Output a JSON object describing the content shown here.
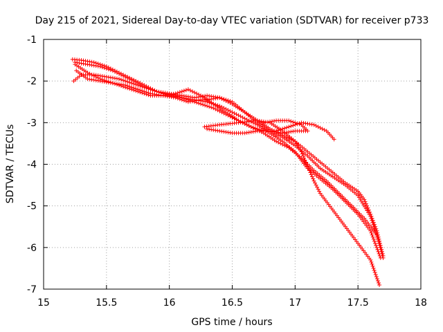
{
  "chart_data": {
    "type": "scatter",
    "title": "Day 215 of 2021, Sidereal Day-to-day VTEC variation (SDTVAR) for receiver p733",
    "xlabel": "GPS time / hours",
    "ylabel": "SDTVAR / TECUs",
    "xlim": [
      15,
      18
    ],
    "ylim": [
      -7,
      -1
    ],
    "xticks": [
      15,
      15.5,
      16,
      16.5,
      17,
      17.5,
      18
    ],
    "xtick_labels": [
      "15",
      "15.5",
      "16",
      "16.5",
      "17",
      "17.5",
      "18"
    ],
    "yticks": [
      -1,
      -2,
      -3,
      -4,
      -5,
      -6,
      -7
    ],
    "ytick_labels": [
      "-1",
      "-2",
      "-3",
      "-4",
      "-5",
      "-6",
      "-7"
    ],
    "grid": true,
    "marker": "+",
    "marker_color": "#ff0000",
    "series": [
      {
        "name": "track-1",
        "points": [
          [
            15.23,
            -1.48
          ],
          [
            15.3,
            -1.5
          ],
          [
            15.4,
            -1.55
          ],
          [
            15.5,
            -1.65
          ],
          [
            15.6,
            -1.8
          ],
          [
            15.7,
            -1.95
          ],
          [
            15.8,
            -2.1
          ],
          [
            15.9,
            -2.25
          ],
          [
            16.0,
            -2.35
          ],
          [
            16.1,
            -2.4
          ],
          [
            16.2,
            -2.45
          ],
          [
            16.3,
            -2.5
          ],
          [
            16.4,
            -2.6
          ],
          [
            16.5,
            -2.75
          ],
          [
            16.6,
            -2.9
          ],
          [
            16.7,
            -3.05
          ],
          [
            16.8,
            -3.25
          ],
          [
            16.9,
            -3.45
          ],
          [
            17.0,
            -3.7
          ],
          [
            17.05,
            -3.9
          ],
          [
            17.1,
            -4.1
          ],
          [
            17.2,
            -4.35
          ],
          [
            17.3,
            -4.6
          ],
          [
            17.4,
            -4.9
          ],
          [
            17.5,
            -5.2
          ],
          [
            17.6,
            -5.6
          ],
          [
            17.68,
            -6.25
          ]
        ]
      },
      {
        "name": "track-2",
        "points": [
          [
            15.25,
            -1.55
          ],
          [
            15.35,
            -1.6
          ],
          [
            15.45,
            -1.65
          ],
          [
            15.55,
            -1.75
          ],
          [
            15.65,
            -1.9
          ],
          [
            15.75,
            -2.05
          ],
          [
            15.85,
            -2.2
          ],
          [
            15.95,
            -2.3
          ],
          [
            16.05,
            -2.35
          ],
          [
            16.15,
            -2.45
          ],
          [
            16.25,
            -2.55
          ],
          [
            16.35,
            -2.65
          ],
          [
            16.45,
            -2.8
          ],
          [
            16.55,
            -2.95
          ],
          [
            16.65,
            -3.1
          ],
          [
            16.75,
            -3.25
          ],
          [
            16.85,
            -3.45
          ],
          [
            16.95,
            -3.6
          ],
          [
            17.05,
            -3.85
          ],
          [
            17.15,
            -4.15
          ],
          [
            17.25,
            -4.4
          ],
          [
            17.35,
            -4.7
          ],
          [
            17.45,
            -5.0
          ],
          [
            17.55,
            -5.3
          ],
          [
            17.65,
            -5.7
          ],
          [
            17.7,
            -6.25
          ]
        ]
      },
      {
        "name": "track-3",
        "points": [
          [
            15.24,
            -2.0
          ],
          [
            15.3,
            -1.85
          ],
          [
            15.4,
            -1.85
          ],
          [
            15.5,
            -1.9
          ],
          [
            15.6,
            -1.95
          ],
          [
            15.7,
            -2.05
          ],
          [
            15.8,
            -2.15
          ],
          [
            15.9,
            -2.25
          ],
          [
            16.0,
            -2.3
          ],
          [
            16.1,
            -2.35
          ],
          [
            16.2,
            -2.4
          ],
          [
            16.3,
            -2.35
          ],
          [
            16.4,
            -2.4
          ],
          [
            16.5,
            -2.55
          ],
          [
            16.6,
            -2.75
          ],
          [
            16.7,
            -2.95
          ],
          [
            16.8,
            -3.15
          ],
          [
            16.9,
            -3.3
          ],
          [
            17.0,
            -3.45
          ],
          [
            17.05,
            -3.7
          ],
          [
            17.1,
            -4.05
          ],
          [
            17.15,
            -4.4
          ],
          [
            17.2,
            -4.7
          ],
          [
            17.3,
            -5.1
          ],
          [
            17.4,
            -5.5
          ],
          [
            17.5,
            -5.9
          ],
          [
            17.6,
            -6.3
          ],
          [
            17.67,
            -6.9
          ]
        ]
      },
      {
        "name": "track-4",
        "points": [
          [
            15.26,
            -1.75
          ],
          [
            15.35,
            -1.95
          ],
          [
            15.45,
            -2.0
          ],
          [
            15.55,
            -2.05
          ],
          [
            15.65,
            -2.15
          ],
          [
            15.75,
            -2.25
          ],
          [
            15.85,
            -2.35
          ],
          [
            15.95,
            -2.35
          ],
          [
            16.05,
            -2.3
          ],
          [
            16.15,
            -2.2
          ],
          [
            16.25,
            -2.35
          ],
          [
            16.35,
            -2.55
          ],
          [
            16.45,
            -2.75
          ],
          [
            16.55,
            -2.95
          ],
          [
            16.65,
            -3.1
          ],
          [
            16.75,
            -3.2
          ],
          [
            16.85,
            -3.2
          ],
          [
            16.95,
            -3.1
          ],
          [
            17.05,
            -3.0
          ],
          [
            17.15,
            -3.05
          ],
          [
            17.25,
            -3.2
          ],
          [
            17.31,
            -3.4
          ]
        ]
      },
      {
        "name": "track-5",
        "points": [
          [
            15.25,
            -1.6
          ],
          [
            15.35,
            -1.8
          ],
          [
            15.45,
            -1.95
          ],
          [
            15.55,
            -2.05
          ],
          [
            15.65,
            -2.1
          ],
          [
            15.75,
            -2.2
          ],
          [
            15.85,
            -2.3
          ],
          [
            15.95,
            -2.35
          ],
          [
            16.05,
            -2.4
          ],
          [
            16.15,
            -2.5
          ],
          [
            16.25,
            -2.45
          ],
          [
            16.3,
            -2.45
          ],
          [
            16.4,
            -2.4
          ],
          [
            16.5,
            -2.5
          ],
          [
            16.6,
            -2.75
          ],
          [
            16.7,
            -3.0
          ],
          [
            16.8,
            -3.2
          ],
          [
            16.9,
            -3.35
          ],
          [
            17.0,
            -3.55
          ],
          [
            17.1,
            -3.8
          ],
          [
            17.2,
            -4.1
          ],
          [
            17.3,
            -4.3
          ],
          [
            17.4,
            -4.5
          ],
          [
            17.5,
            -4.75
          ],
          [
            17.6,
            -5.25
          ],
          [
            17.67,
            -5.9
          ]
        ]
      },
      {
        "name": "track-6",
        "points": [
          [
            16.28,
            -3.1
          ],
          [
            16.4,
            -3.05
          ],
          [
            16.55,
            -3.0
          ],
          [
            16.7,
            -2.95
          ],
          [
            16.8,
            -3.0
          ],
          [
            16.9,
            -3.2
          ],
          [
            17.0,
            -3.45
          ],
          [
            17.1,
            -3.7
          ],
          [
            17.2,
            -3.95
          ],
          [
            17.3,
            -4.2
          ],
          [
            17.4,
            -4.45
          ],
          [
            17.5,
            -4.65
          ],
          [
            17.55,
            -4.85
          ],
          [
            17.6,
            -5.2
          ],
          [
            17.65,
            -5.6
          ],
          [
            17.7,
            -6.2
          ]
        ]
      },
      {
        "name": "track-7",
        "points": [
          [
            16.75,
            -3.0
          ],
          [
            16.85,
            -2.95
          ],
          [
            16.95,
            -2.95
          ],
          [
            17.05,
            -3.05
          ],
          [
            17.1,
            -3.2
          ],
          [
            17.0,
            -3.2
          ],
          [
            16.9,
            -3.25
          ],
          [
            16.8,
            -3.2
          ],
          [
            16.7,
            -3.2
          ],
          [
            16.6,
            -3.25
          ],
          [
            16.5,
            -3.25
          ],
          [
            16.4,
            -3.2
          ],
          [
            16.3,
            -3.15
          ]
        ]
      }
    ]
  }
}
